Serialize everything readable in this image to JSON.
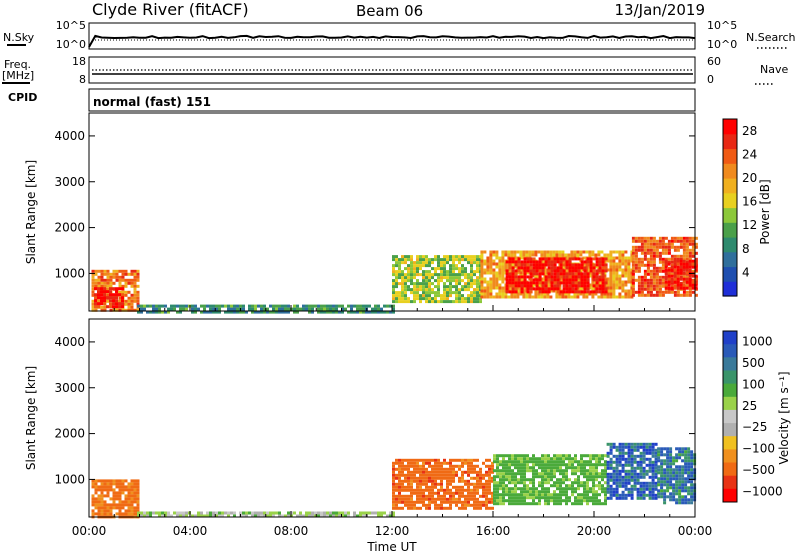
{
  "header": {
    "station": "Clyde River (fitACF)",
    "beam": "Beam 06",
    "date": "13/Jan/2019"
  },
  "strips": {
    "nsky_label": "N.Sky",
    "nsky_ticks": [
      "10^5",
      "10^0"
    ],
    "nsearch_label": "N.Search",
    "nsearch_ticks": [
      "10^5",
      "10^0"
    ],
    "freq_label_1": "Freq.",
    "freq_label_2": "[MHz]",
    "freq_ticks": [
      "18",
      "8"
    ],
    "nave_label": "Nave",
    "nave_ticks": [
      "60",
      "0"
    ],
    "cpid_label": "CPID",
    "cpid_text": "normal (fast) 151"
  },
  "colors": {
    "power_scale": [
      "#1f2fd8",
      "#1f4fb0",
      "#2f6f9c",
      "#2e8a6e",
      "#4aa04a",
      "#8cc83a",
      "#e8d020",
      "#f0b020",
      "#f08a1e",
      "#f05a14",
      "#e82814",
      "#ff0000"
    ],
    "velocity_scale": [
      "#2040c8",
      "#2a5ab8",
      "#3a7a9a",
      "#3a946a",
      "#4aaa3a",
      "#9ad24a",
      "#c8c8c8",
      "#b0b0b0",
      "#f0c020",
      "#f0901e",
      "#f06a14",
      "#e83214",
      "#ff0000"
    ]
  },
  "chart_data": [
    {
      "type": "heatmap",
      "title": "",
      "xlabel": "",
      "ylabel": "Slant Range [km]",
      "xlim": [
        "00:00",
        "24:00"
      ],
      "ylim": [
        180,
        4500
      ],
      "ytick_labels": [
        "1000",
        "2000",
        "3000",
        "4000"
      ],
      "colorbar_label": "Power [dB]",
      "colorbar_ticks": [
        "4",
        "8",
        "12",
        "16",
        "20",
        "24",
        "28"
      ],
      "colorbar_range": [
        0,
        30
      ],
      "regions": [
        {
          "t0": 0.1,
          "t1": 1.9,
          "r0": 200,
          "r1": 1080,
          "value": 22
        },
        {
          "t0": 0.2,
          "t1": 1.3,
          "r0": 300,
          "r1": 700,
          "value": 28
        },
        {
          "t0": 1.9,
          "t1": 12.0,
          "r0": 180,
          "r1": 320,
          "value": 9
        },
        {
          "t0": 12.0,
          "t1": 15.5,
          "r0": 400,
          "r1": 1400,
          "value": 14
        },
        {
          "t0": 15.5,
          "t1": 21.5,
          "r0": 500,
          "r1": 1500,
          "value": 20
        },
        {
          "t0": 16.5,
          "t1": 20.5,
          "r0": 600,
          "r1": 1350,
          "value": 28
        },
        {
          "t0": 21.5,
          "t1": 24.0,
          "r0": 500,
          "r1": 1800,
          "value": 24
        },
        {
          "t0": 22.8,
          "t1": 24.0,
          "r0": 700,
          "r1": 1300,
          "value": 28
        }
      ]
    },
    {
      "type": "heatmap",
      "title": "",
      "xlabel": "Time UT",
      "ylabel": "Slant Range [km]",
      "xlim": [
        "00:00",
        "24:00"
      ],
      "xtick_labels": [
        "00:00",
        "04:00",
        "08:00",
        "12:00",
        "16:00",
        "20:00",
        "00:00"
      ],
      "ylim": [
        180,
        4500
      ],
      "ytick_labels": [
        "1000",
        "2000",
        "3000",
        "4000"
      ],
      "colorbar_label": "Velocity [m s⁻¹]",
      "colorbar_ticks": [
        "1000",
        "500",
        "100",
        "25",
        "−25",
        "−100",
        "−500",
        "−1000"
      ],
      "regions": [
        {
          "t0": 0.1,
          "t1": 1.9,
          "r0": 200,
          "r1": 1000,
          "value": -150
        },
        {
          "t0": 1.9,
          "t1": 12.0,
          "r0": 180,
          "r1": 300,
          "value": 50
        },
        {
          "t0": 12.0,
          "t1": 16.0,
          "r0": 400,
          "r1": 1450,
          "value": -200
        },
        {
          "t0": 16.0,
          "t1": 20.5,
          "r0": 500,
          "r1": 1550,
          "value": 150
        },
        {
          "t0": 20.5,
          "t1": 22.5,
          "r0": 600,
          "r1": 1800,
          "value": 800
        },
        {
          "t0": 22.5,
          "t1": 24.0,
          "r0": 500,
          "r1": 1700,
          "value": 600
        }
      ]
    }
  ]
}
